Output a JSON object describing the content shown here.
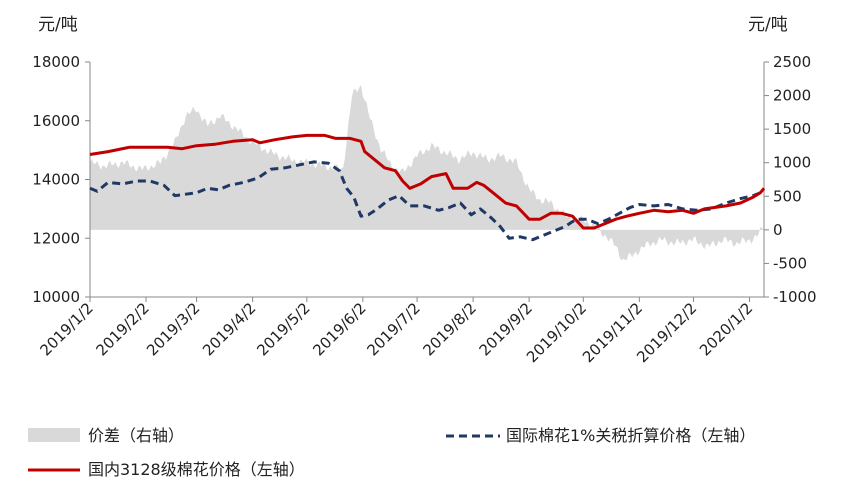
{
  "chart_data": {
    "type": "line",
    "title": "",
    "units": {
      "left": "元/吨",
      "right": "元/吨"
    },
    "left_axis": {
      "min": 10000,
      "max": 18000,
      "ticks": [
        10000,
        12000,
        14000,
        16000,
        18000
      ]
    },
    "right_axis": {
      "min": -1000,
      "max": 2500,
      "ticks": [
        -1000,
        -500,
        0,
        500,
        1000,
        1500,
        2000,
        2500
      ]
    },
    "x_axis": {
      "start": "2019-01-02",
      "end": "2020-01-10",
      "tick_dates": [
        "2019-01-02",
        "2019-02-02",
        "2019-03-02",
        "2019-04-02",
        "2019-05-02",
        "2019-06-02",
        "2019-07-02",
        "2019-08-02",
        "2019-09-02",
        "2019-10-02",
        "2019-11-02",
        "2019-12-02",
        "2020-01-02"
      ],
      "tick_labels": [
        "2019/1/2",
        "2019/2/2",
        "2019/3/2",
        "2019/4/2",
        "2019/5/2",
        "2019/6/2",
        "2019/7/2",
        "2019/8/2",
        "2019/9/2",
        "2019/10/2",
        "2019/11/2",
        "2019/12/2",
        "2020/1/2"
      ]
    },
    "legend": {
      "placement": "bottom"
    },
    "series": [
      {
        "name": "价差（右轴）",
        "kind": "area",
        "axis": "right",
        "color": "#d9d9d9",
        "points": [
          [
            "2019-01-02",
            1000
          ],
          [
            "2019-01-10",
            950
          ],
          [
            "2019-01-20",
            1000
          ],
          [
            "2019-01-31",
            900
          ],
          [
            "2019-02-10",
            1000
          ],
          [
            "2019-02-18",
            1300
          ],
          [
            "2019-02-24",
            1700
          ],
          [
            "2019-03-02",
            1800
          ],
          [
            "2019-03-08",
            1550
          ],
          [
            "2019-03-15",
            1700
          ],
          [
            "2019-03-22",
            1550
          ],
          [
            "2019-04-02",
            1300
          ],
          [
            "2019-04-12",
            1150
          ],
          [
            "2019-04-22",
            1050
          ],
          [
            "2019-05-02",
            1000
          ],
          [
            "2019-05-12",
            950
          ],
          [
            "2019-05-22",
            900
          ],
          [
            "2019-05-24",
            1350
          ],
          [
            "2019-05-27",
            2000
          ],
          [
            "2019-06-01",
            2150
          ],
          [
            "2019-06-06",
            1650
          ],
          [
            "2019-06-12",
            1200
          ],
          [
            "2019-06-18",
            950
          ],
          [
            "2019-06-24",
            850
          ],
          [
            "2019-07-02",
            1100
          ],
          [
            "2019-07-10",
            1250
          ],
          [
            "2019-07-18",
            1150
          ],
          [
            "2019-07-25",
            1050
          ],
          [
            "2019-08-02",
            1150
          ],
          [
            "2019-08-10",
            1050
          ],
          [
            "2019-08-18",
            1100
          ],
          [
            "2019-08-26",
            1000
          ],
          [
            "2019-09-02",
            600
          ],
          [
            "2019-09-08",
            450
          ],
          [
            "2019-09-14",
            400
          ],
          [
            "2019-09-20",
            250
          ],
          [
            "2019-09-26",
            150
          ],
          [
            "2019-10-02",
            150
          ],
          [
            "2019-10-06",
            100
          ],
          [
            "2019-10-10",
            0
          ],
          [
            "2019-10-15",
            -100
          ],
          [
            "2019-10-20",
            -250
          ],
          [
            "2019-10-24",
            -450
          ],
          [
            "2019-10-28",
            -400
          ],
          [
            "2019-11-02",
            -300
          ],
          [
            "2019-11-08",
            -200
          ],
          [
            "2019-11-15",
            -150
          ],
          [
            "2019-11-22",
            -200
          ],
          [
            "2019-12-02",
            -150
          ],
          [
            "2019-12-10",
            -250
          ],
          [
            "2019-12-18",
            -150
          ],
          [
            "2019-12-26",
            -200
          ],
          [
            "2020-01-02",
            -150
          ],
          [
            "2020-01-06",
            -100
          ],
          [
            "2020-01-10",
            50
          ]
        ]
      },
      {
        "name": "国际棉花1%关税折算价格（左轴）",
        "kind": "line",
        "axis": "left",
        "color": "#1f3864",
        "dash": "dash",
        "points": [
          [
            "2019-01-02",
            13700
          ],
          [
            "2019-01-06",
            13600
          ],
          [
            "2019-01-12",
            13900
          ],
          [
            "2019-01-20",
            13850
          ],
          [
            "2019-01-28",
            13950
          ],
          [
            "2019-02-04",
            13950
          ],
          [
            "2019-02-12",
            13800
          ],
          [
            "2019-02-18",
            13450
          ],
          [
            "2019-02-24",
            13500
          ],
          [
            "2019-03-02",
            13550
          ],
          [
            "2019-03-08",
            13700
          ],
          [
            "2019-03-14",
            13650
          ],
          [
            "2019-03-20",
            13800
          ],
          [
            "2019-03-28",
            13900
          ],
          [
            "2019-04-05",
            14050
          ],
          [
            "2019-04-12",
            14350
          ],
          [
            "2019-04-20",
            14400
          ],
          [
            "2019-04-28",
            14500
          ],
          [
            "2019-05-06",
            14600
          ],
          [
            "2019-05-14",
            14550
          ],
          [
            "2019-05-20",
            14300
          ],
          [
            "2019-05-24",
            13700
          ],
          [
            "2019-05-28",
            13400
          ],
          [
            "2019-06-01",
            12750
          ],
          [
            "2019-06-05",
            12800
          ],
          [
            "2019-06-10",
            13000
          ],
          [
            "2019-06-16",
            13300
          ],
          [
            "2019-06-22",
            13450
          ],
          [
            "2019-06-28",
            13100
          ],
          [
            "2019-07-06",
            13100
          ],
          [
            "2019-07-14",
            12950
          ],
          [
            "2019-07-20",
            13050
          ],
          [
            "2019-07-26",
            13200
          ],
          [
            "2019-08-01",
            12800
          ],
          [
            "2019-08-06",
            13000
          ],
          [
            "2019-08-12",
            12700
          ],
          [
            "2019-08-17",
            12400
          ],
          [
            "2019-08-22",
            12000
          ],
          [
            "2019-08-28",
            12050
          ],
          [
            "2019-09-04",
            11950
          ],
          [
            "2019-09-10",
            12100
          ],
          [
            "2019-09-16",
            12250
          ],
          [
            "2019-09-22",
            12400
          ],
          [
            "2019-09-28",
            12650
          ],
          [
            "2019-10-04",
            12650
          ],
          [
            "2019-10-10",
            12500
          ],
          [
            "2019-10-16",
            12650
          ],
          [
            "2019-10-22",
            12850
          ],
          [
            "2019-10-28",
            13050
          ],
          [
            "2019-11-02",
            13150
          ],
          [
            "2019-11-10",
            13100
          ],
          [
            "2019-11-18",
            13150
          ],
          [
            "2019-11-26",
            13000
          ],
          [
            "2019-12-04",
            12950
          ],
          [
            "2019-12-12",
            13000
          ],
          [
            "2019-12-20",
            13200
          ],
          [
            "2019-12-28",
            13350
          ],
          [
            "2020-01-04",
            13450
          ],
          [
            "2020-01-10",
            13600
          ]
        ]
      },
      {
        "name": "国内3128级棉花价格（左轴）",
        "kind": "line",
        "axis": "left",
        "color": "#c00000",
        "dash": "solid",
        "points": [
          [
            "2019-01-02",
            14850
          ],
          [
            "2019-01-12",
            14950
          ],
          [
            "2019-01-24",
            15100
          ],
          [
            "2019-02-02",
            15100
          ],
          [
            "2019-02-14",
            15100
          ],
          [
            "2019-02-22",
            15050
          ],
          [
            "2019-03-02",
            15150
          ],
          [
            "2019-03-12",
            15200
          ],
          [
            "2019-03-22",
            15300
          ],
          [
            "2019-04-02",
            15350
          ],
          [
            "2019-04-06",
            15250
          ],
          [
            "2019-04-14",
            15350
          ],
          [
            "2019-04-24",
            15450
          ],
          [
            "2019-05-02",
            15500
          ],
          [
            "2019-05-12",
            15500
          ],
          [
            "2019-05-18",
            15400
          ],
          [
            "2019-05-26",
            15400
          ],
          [
            "2019-06-01",
            15300
          ],
          [
            "2019-06-03",
            14950
          ],
          [
            "2019-06-08",
            14700
          ],
          [
            "2019-06-14",
            14400
          ],
          [
            "2019-06-20",
            14300
          ],
          [
            "2019-06-24",
            13950
          ],
          [
            "2019-06-28",
            13700
          ],
          [
            "2019-07-04",
            13850
          ],
          [
            "2019-07-10",
            14100
          ],
          [
            "2019-07-18",
            14200
          ],
          [
            "2019-07-22",
            13700
          ],
          [
            "2019-07-30",
            13700
          ],
          [
            "2019-08-04",
            13900
          ],
          [
            "2019-08-08",
            13800
          ],
          [
            "2019-08-14",
            13500
          ],
          [
            "2019-08-20",
            13200
          ],
          [
            "2019-08-26",
            13100
          ],
          [
            "2019-09-02",
            12650
          ],
          [
            "2019-09-08",
            12650
          ],
          [
            "2019-09-14",
            12850
          ],
          [
            "2019-09-20",
            12850
          ],
          [
            "2019-09-26",
            12750
          ],
          [
            "2019-10-02",
            12350
          ],
          [
            "2019-10-08",
            12350
          ],
          [
            "2019-10-14",
            12500
          ],
          [
            "2019-10-20",
            12650
          ],
          [
            "2019-10-26",
            12750
          ],
          [
            "2019-11-02",
            12850
          ],
          [
            "2019-11-10",
            12950
          ],
          [
            "2019-11-18",
            12900
          ],
          [
            "2019-11-26",
            12950
          ],
          [
            "2019-12-02",
            12850
          ],
          [
            "2019-12-08",
            13000
          ],
          [
            "2019-12-14",
            13050
          ],
          [
            "2019-12-20",
            13100
          ],
          [
            "2019-12-28",
            13200
          ],
          [
            "2020-01-04",
            13400
          ],
          [
            "2020-01-08",
            13550
          ],
          [
            "2020-01-10",
            13700
          ]
        ]
      }
    ]
  }
}
